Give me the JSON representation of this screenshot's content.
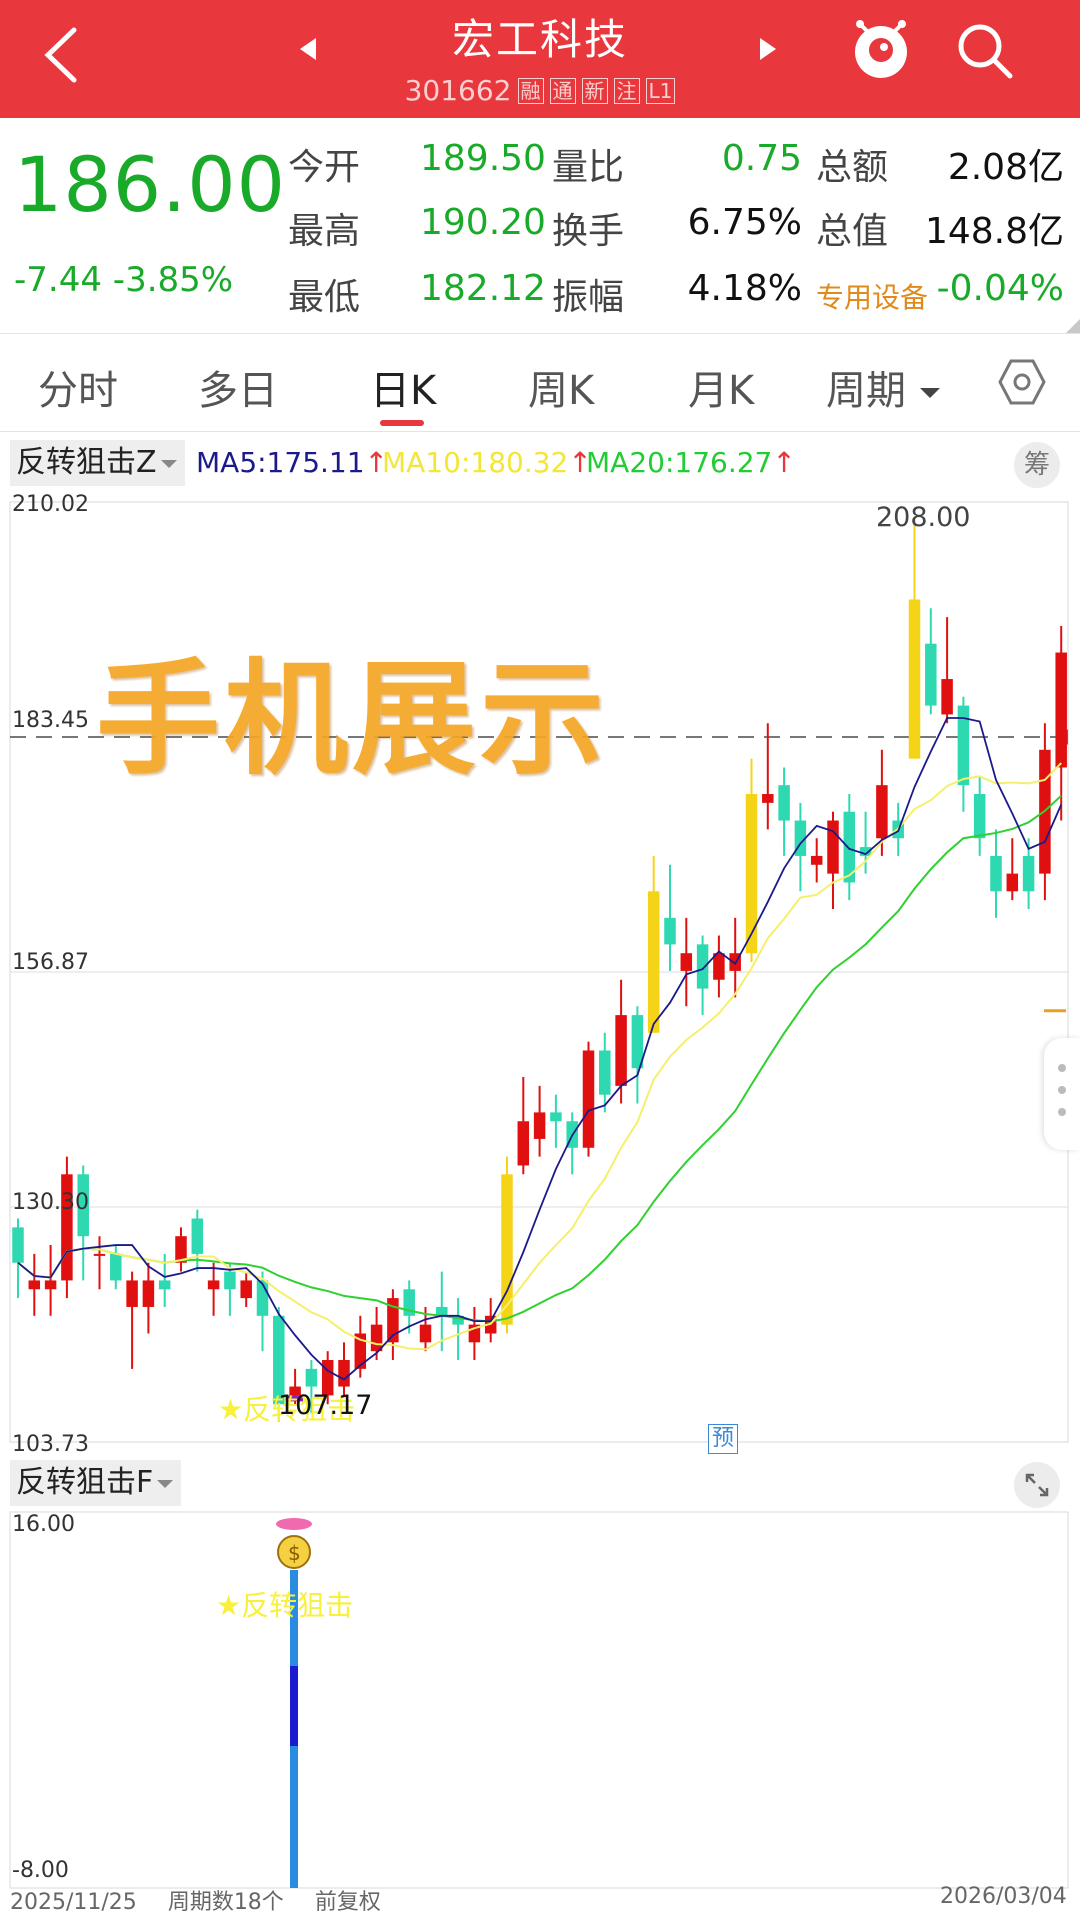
{
  "header": {
    "title": "宏工科技",
    "code": "301662",
    "tags": [
      "融",
      "通",
      "新",
      "注",
      "L1"
    ]
  },
  "quote": {
    "price": "186.00",
    "change": "-7.44",
    "change_pct": "-3.85%",
    "open_label": "今开",
    "open": "189.50",
    "high_label": "最高",
    "high": "190.20",
    "low_label": "最低",
    "low": "182.12",
    "vol_ratio_label": "量比",
    "vol_ratio": "0.75",
    "turnover_label": "换手",
    "turnover": "6.75%",
    "amplitude_label": "振幅",
    "amplitude": "4.18%",
    "amount_label": "总额",
    "amount": "2.08亿",
    "mcap_label": "总值",
    "mcap": "148.8亿",
    "sector_label": "专用设备",
    "sector_chg": "-0.04%"
  },
  "tabs": [
    "分时",
    "多日",
    "日K",
    "周K",
    "月K",
    "周期"
  ],
  "active_tab": "日K",
  "indicator": {
    "name": "反转狙击Z",
    "ma5": "MA5:175.11",
    "ma10": "MA10:180.32",
    "ma20": "MA20:176.27",
    "arrow": "↑",
    "chou_label": "筹"
  },
  "chart_data": {
    "type": "candlestick",
    "y_ticks": [
      "210.02",
      "183.45",
      "156.87",
      "130.30",
      "103.73"
    ],
    "ylim": [
      103.73,
      210.02
    ],
    "peak_label": "208.00",
    "low_label": "107.17",
    "signal_label": "★反转狙击",
    "predict_label": "预",
    "watermark": "手机展示",
    "colors": {
      "up": "#e01010",
      "down": "#2ed8b0",
      "limit_up": "#f5d418",
      "ma5": "#1a1a8a",
      "ma10": "#f5f06a",
      "ma20": "#30d030"
    }
  },
  "sub_panel": {
    "name": "反转狙击F",
    "y_top": "16.00",
    "y_bottom": "-8.00",
    "signal_label": "★反转狙击"
  },
  "footer": {
    "start_date": "2025/11/25",
    "period_info": "周期数18个",
    "adjust": "前复权",
    "end_date": "2026/03/04"
  }
}
